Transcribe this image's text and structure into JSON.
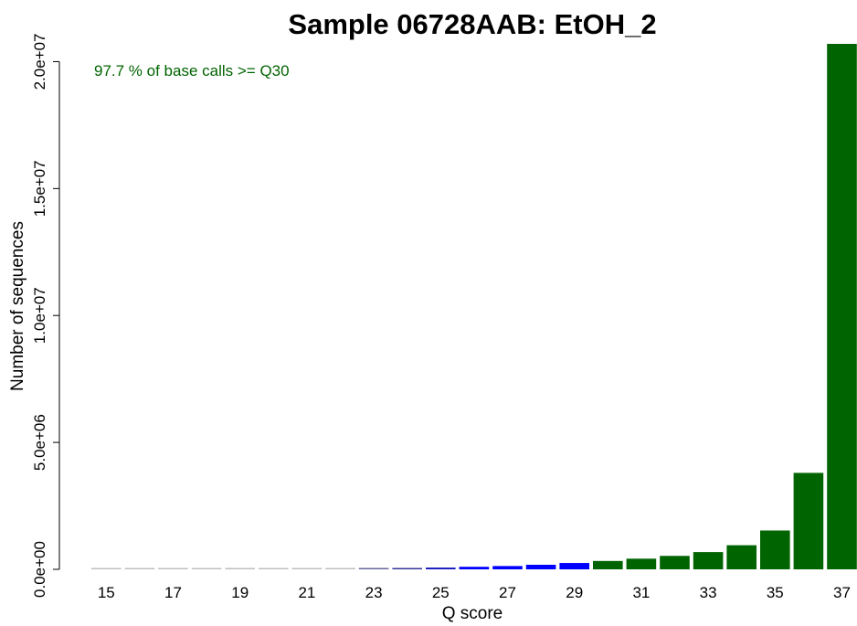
{
  "chart_data": {
    "type": "bar",
    "title": "Sample 06728AAB: EtOH_2",
    "xlabel": "Q score",
    "ylabel": "Number of sequences",
    "annotation": "97.7 % of base calls >= Q30",
    "categories": [
      "15",
      "16",
      "17",
      "18",
      "19",
      "20",
      "21",
      "22",
      "23",
      "24",
      "25",
      "26",
      "27",
      "28",
      "29",
      "30",
      "31",
      "32",
      "33",
      "34",
      "35",
      "36",
      "37"
    ],
    "x_tick_labels": [
      "15",
      "17",
      "19",
      "21",
      "23",
      "25",
      "27",
      "29",
      "31",
      "33",
      "35",
      "37"
    ],
    "y_tick_labels": [
      "0.0e+00",
      "5.0e+06",
      "1.0e+07",
      "1.5e+07",
      "2.0e+07"
    ],
    "y_ticks": [
      0,
      5000000,
      10000000,
      15000000,
      20000000
    ],
    "ylim": [
      0,
      20700000
    ],
    "values": [
      20000,
      20000,
      20000,
      20000,
      20000,
      20000,
      30000,
      30000,
      40000,
      50000,
      70000,
      100000,
      130000,
      180000,
      250000,
      330000,
      420000,
      530000,
      680000,
      950000,
      1530000,
      3800000,
      20700000
    ],
    "bar_colors": [
      "#bebebe",
      "#bebebe",
      "#bebebe",
      "#bebebe",
      "#bebebe",
      "#bebebe",
      "#bebebe",
      "#bebebe",
      "#666699",
      "#333399",
      "#1a1abf",
      "#0000ff",
      "#0000ff",
      "#0000ff",
      "#0000ff",
      "#006400",
      "#006400",
      "#006400",
      "#006400",
      "#006400",
      "#006400",
      "#006400",
      "#006400"
    ],
    "annotation_color": "#006400",
    "grid": false,
    "legend": "none"
  }
}
